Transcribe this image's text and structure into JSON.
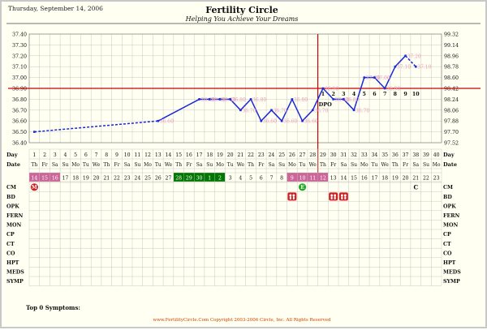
{
  "header": {
    "date": "Thursday, September 14, 2006",
    "title": "Fertility Circle",
    "subtitle": "Helping You Achieve Your Dreams"
  },
  "footer": {
    "copyright": "www.FertilityCircle.Com Copyright 2003-2006 Circle, Inc. All Rights Reserved",
    "symptoms_label": "Top 0 Symptoms:"
  },
  "chart_data": {
    "type": "line",
    "title": "Fertility Circle",
    "subtitle": "Helping You Achieve Your Dreams",
    "y_left_ticks": [
      "36.40",
      "36.50",
      "36.60",
      "36.70",
      "36.80",
      "36.90",
      "37.00",
      "37.10",
      "37.20",
      "37.30",
      "37.40"
    ],
    "y_right_ticks": [
      "97.52",
      "97.70",
      "97.88",
      "98.06",
      "98.24",
      "98.42",
      "98.60",
      "98.78",
      "98.96",
      "99.14",
      "99.32"
    ],
    "ylim": [
      36.4,
      37.4
    ],
    "days": [
      "1",
      "2",
      "3",
      "4",
      "5",
      "6",
      "7",
      "8",
      "9",
      "10",
      "11",
      "12",
      "13",
      "14",
      "15",
      "16",
      "17",
      "18",
      "19",
      "20",
      "21",
      "22",
      "23",
      "24",
      "25",
      "26",
      "27",
      "28",
      "29",
      "30",
      "31",
      "32",
      "33",
      "34",
      "35",
      "36",
      "37",
      "38",
      "39",
      "40"
    ],
    "weekdays": [
      "Th",
      "Fr",
      "Sa",
      "Su",
      "Mo",
      "Tu",
      "We",
      "Th",
      "Fr",
      "Sa",
      "Su",
      "Mo",
      "Tu",
      "We",
      "Th",
      "Fr",
      "Sa",
      "Su",
      "Mo",
      "Tu",
      "We",
      "Th",
      "Fr",
      "Sa",
      "Su",
      "Mo",
      "Tu",
      "We",
      "Th",
      "Fr",
      "Sa",
      "Su",
      "Mo",
      "Tu",
      "We",
      "Th",
      "Fr",
      "Sa",
      "Su",
      "Mo"
    ],
    "dates": [
      "14",
      "15",
      "16",
      "17",
      "18",
      "19",
      "20",
      "21",
      "22",
      "23",
      "24",
      "25",
      "26",
      "27",
      "28",
      "29",
      "30",
      "1",
      "2",
      "3",
      "4",
      "5",
      "6",
      "7",
      "8",
      "9",
      "10",
      "11",
      "12",
      "13",
      "14",
      "15",
      "16",
      "17",
      "18",
      "19",
      "20",
      "21",
      "22",
      "23"
    ],
    "date_colors": {
      "1": "#cc6699",
      "2": "#cc6699",
      "3": "#cc6699",
      "15": "#007700",
      "16": "#007700",
      "17": "#007700",
      "18": "#007700",
      "19": "#007700",
      "26": "#cc6699",
      "27": "#cc6699",
      "28": "#cc6699",
      "29": "#cc6699"
    },
    "temperatures": [
      {
        "day": 1,
        "value": 36.5,
        "label": ""
      },
      {
        "day": 13,
        "value": 36.6,
        "label": "36.60"
      },
      {
        "day": 17,
        "value": 36.8,
        "label": "36.80"
      },
      {
        "day": 18,
        "value": 36.8,
        "label": "36.80"
      },
      {
        "day": 19,
        "value": 36.8,
        "label": "36.80"
      },
      {
        "day": 20,
        "value": 36.8,
        "label": "36.80"
      },
      {
        "day": 21,
        "value": 36.7,
        "label": "36.70"
      },
      {
        "day": 22,
        "value": 36.8,
        "label": "36.80"
      },
      {
        "day": 23,
        "value": 36.6,
        "label": "36.60"
      },
      {
        "day": 24,
        "value": 36.7,
        "label": "36.70"
      },
      {
        "day": 25,
        "value": 36.6,
        "label": "36.60"
      },
      {
        "day": 26,
        "value": 36.8,
        "label": "36.80"
      },
      {
        "day": 27,
        "value": 36.6,
        "label": "36.60"
      },
      {
        "day": 28,
        "value": 36.7,
        "label": "36.70"
      },
      {
        "day": 29,
        "value": 36.9,
        "label": "36.90"
      },
      {
        "day": 30,
        "value": 36.8,
        "label": "36.80"
      },
      {
        "day": 31,
        "value": 36.8,
        "label": "36.80"
      },
      {
        "day": 32,
        "value": 36.7,
        "label": "36.70"
      },
      {
        "day": 33,
        "value": 37.0,
        "label": "37.00"
      },
      {
        "day": 34,
        "value": 37.0,
        "label": "37.00"
      },
      {
        "day": 35,
        "value": 36.9,
        "label": "36.90"
      },
      {
        "day": 36,
        "value": 37.1,
        "label": "37.10"
      },
      {
        "day": 37,
        "value": 37.2,
        "label": "37.20"
      },
      {
        "day": 38,
        "value": 37.1,
        "label": "37.10"
      }
    ],
    "dashed_segments": [
      [
        1,
        13
      ],
      [
        37,
        38
      ]
    ],
    "coverline": 36.9,
    "ovulation_day": 28,
    "ovulation_label": "DPO",
    "dpo": [
      {
        "day": 29,
        "label": "1"
      },
      {
        "day": 30,
        "label": "2"
      },
      {
        "day": 31,
        "label": "3"
      },
      {
        "day": 32,
        "label": "4"
      },
      {
        "day": 33,
        "label": "5"
      },
      {
        "day": 34,
        "label": "6"
      },
      {
        "day": 35,
        "label": "7"
      },
      {
        "day": 36,
        "label": "8"
      },
      {
        "day": 37,
        "label": "9"
      },
      {
        "day": 38,
        "label": "10"
      }
    ],
    "row_labels": [
      "CM",
      "BD",
      "OPK",
      "FERN",
      "MON",
      "CP",
      "CT",
      "CO",
      "HPT",
      "MEDS",
      "SYMP"
    ],
    "day_label": "Day",
    "date_label": "Date",
    "markers": [
      {
        "row": "CM",
        "day": 1,
        "kind": "circle",
        "text": "M",
        "color": "#cc2222"
      },
      {
        "row": "CM",
        "day": 27,
        "kind": "circle",
        "text": "E",
        "color": "#22aa22"
      },
      {
        "row": "CM",
        "day": 38,
        "kind": "text",
        "text": "C",
        "color": "#000000"
      },
      {
        "row": "BD",
        "day": 26,
        "kind": "bd",
        "color": "#cc2222"
      },
      {
        "row": "BD",
        "day": 30,
        "kind": "bd",
        "color": "#cc2222"
      },
      {
        "row": "BD",
        "day": 31,
        "kind": "bd",
        "color": "#cc2222"
      }
    ],
    "colors": {
      "line": "#1a2ad8",
      "coverline": "#cc0000",
      "label": "#e8a0b8",
      "grid": "#bbbbbb"
    }
  }
}
